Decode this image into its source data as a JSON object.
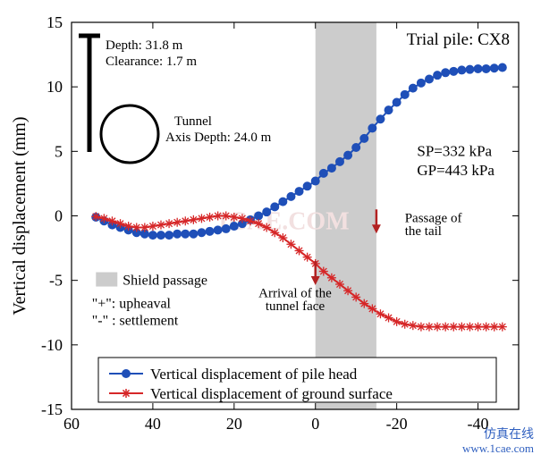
{
  "chart": {
    "title_right": "Trial pile: CX8",
    "ylabel": "Vertical displacement (mm)",
    "xlim": [
      60,
      -50
    ],
    "ylim": [
      -15,
      15
    ],
    "xticks": [
      60,
      40,
      20,
      0,
      -20,
      -40
    ],
    "yticks": [
      -15,
      -10,
      -5,
      0,
      5,
      10,
      15
    ],
    "background": "#ffffff",
    "grid_color": "#e0e0e0",
    "axis_color": "#000000",
    "tick_fontsize": 18,
    "label_fontsize": 20,
    "series": {
      "pile": {
        "label": "Vertical displacement of pile head",
        "color": "#1f4fb8",
        "marker": "circle",
        "marker_size": 4.5,
        "line_width": 2,
        "x": [
          54,
          52,
          50,
          48,
          46,
          44,
          42,
          40,
          38,
          36,
          34,
          32,
          30,
          28,
          26,
          24,
          22,
          20,
          18,
          16,
          14,
          12,
          10,
          8,
          6,
          4,
          2,
          0,
          -2,
          -4,
          -6,
          -8,
          -10,
          -12,
          -14,
          -16,
          -18,
          -20,
          -22,
          -24,
          -26,
          -28,
          -30,
          -32,
          -34,
          -36,
          -38,
          -40,
          -42,
          -44,
          -46
        ],
        "y": [
          -0.1,
          -0.4,
          -0.7,
          -0.9,
          -1.1,
          -1.3,
          -1.4,
          -1.5,
          -1.5,
          -1.5,
          -1.4,
          -1.4,
          -1.4,
          -1.3,
          -1.2,
          -1.1,
          -1.0,
          -0.8,
          -0.6,
          -0.3,
          0.0,
          0.3,
          0.7,
          1.1,
          1.5,
          1.9,
          2.3,
          2.7,
          3.3,
          3.7,
          4.2,
          4.7,
          5.3,
          6.0,
          6.8,
          7.5,
          8.2,
          8.8,
          9.4,
          9.9,
          10.3,
          10.6,
          10.9,
          11.1,
          11.2,
          11.3,
          11.35,
          11.4,
          11.4,
          11.45,
          11.5
        ]
      },
      "ground": {
        "label": "Vertical displacement of ground surface",
        "color": "#d62728",
        "marker": "asterisk",
        "marker_size": 5,
        "line_width": 2,
        "x": [
          54,
          52,
          50,
          48,
          46,
          44,
          42,
          40,
          38,
          36,
          34,
          32,
          30,
          28,
          26,
          24,
          22,
          20,
          18,
          16,
          14,
          12,
          10,
          8,
          6,
          4,
          2,
          0,
          -2,
          -4,
          -6,
          -8,
          -10,
          -12,
          -14,
          -16,
          -18,
          -20,
          -22,
          -24,
          -26,
          -28,
          -30,
          -32,
          -34,
          -36,
          -38,
          -40,
          -42,
          -44,
          -46
        ],
        "y": [
          -0.05,
          -0.2,
          -0.4,
          -0.6,
          -0.8,
          -0.9,
          -0.9,
          -0.8,
          -0.7,
          -0.6,
          -0.5,
          -0.4,
          -0.3,
          -0.2,
          -0.1,
          0.0,
          0.0,
          -0.1,
          -0.2,
          -0.4,
          -0.6,
          -0.9,
          -1.3,
          -1.7,
          -2.2,
          -2.7,
          -3.2,
          -3.7,
          -4.3,
          -4.8,
          -5.3,
          -5.8,
          -6.3,
          -6.8,
          -7.2,
          -7.6,
          -7.9,
          -8.2,
          -8.4,
          -8.5,
          -8.6,
          -8.6,
          -8.6,
          -8.6,
          -8.6,
          -8.6,
          -8.6,
          -8.6,
          -8.6,
          -8.6,
          -8.6
        ]
      }
    },
    "shaded": {
      "x_from": 0,
      "x_to": -15,
      "color": "#cccccc"
    },
    "annotations": {
      "depth_line1": "Depth: 31.8 m",
      "depth_line2": "Clearance: 1.7 m",
      "tunnel_label": "Tunnel",
      "tunnel_depth": "Axis Depth: 24.0 m",
      "sp": "SP=332 kPa",
      "gp": "GP=443 kPa",
      "passage": "Passage of\nthe tail",
      "arrival": "Arrival of the\ntunnel face",
      "shield": "Shield passage",
      "upheaval": "\"+\": upheaval",
      "settlement": "\"-\" : settlement"
    },
    "legend": {
      "border_color": "#000000",
      "bg": "#ffffff",
      "fontsize": 17
    },
    "watermark": "www.1cae.com",
    "watermark_label": "仿真在线",
    "center_watermark": "1CAE.COM",
    "arrow_color": "#b22222"
  }
}
